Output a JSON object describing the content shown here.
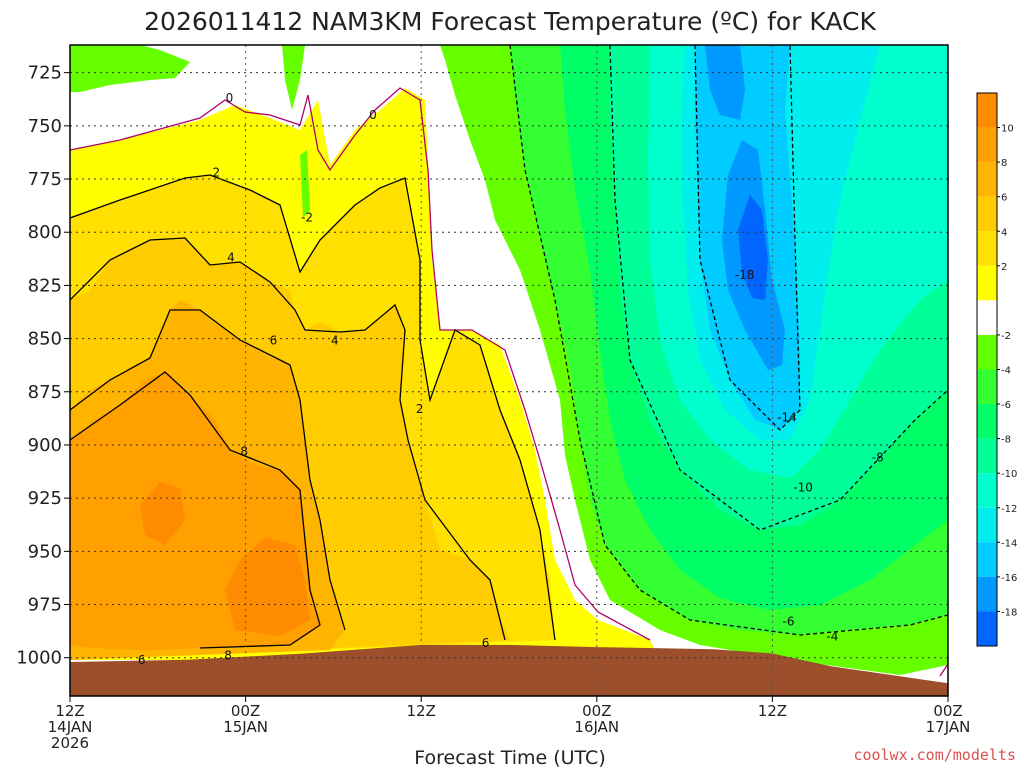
{
  "chart_data": {
    "type": "heatmap",
    "title": "2026011412 NAM3KM Forecast Temperature (ºC) for KACK",
    "xlabel": "Forecast Time (UTC)",
    "ylabel": "",
    "credit": "coolwx.com/modelts",
    "x_ticks": [
      {
        "hours": 0,
        "lines": [
          "12Z",
          "14JAN",
          "2026"
        ]
      },
      {
        "hours": 12,
        "lines": [
          "00Z",
          "15JAN"
        ]
      },
      {
        "hours": 24,
        "lines": [
          "12Z"
        ]
      },
      {
        "hours": 36,
        "lines": [
          "00Z",
          "16JAN"
        ]
      },
      {
        "hours": 48,
        "lines": [
          "12Z"
        ]
      },
      {
        "hours": 60,
        "lines": [
          "00Z",
          "17JAN"
        ]
      }
    ],
    "xlim_hours": [
      0,
      60
    ],
    "y_ticks": [
      725,
      750,
      775,
      800,
      825,
      850,
      875,
      900,
      925,
      950,
      975,
      1000
    ],
    "ylim_hPa": [
      712,
      1018
    ],
    "colorbar": {
      "labels": [
        "10",
        "8",
        "6",
        "4",
        "2",
        "-2",
        "-4",
        "-6",
        "-8",
        "-10",
        "-12",
        "-14",
        "-16",
        "-18"
      ],
      "bands": [
        {
          "from": 10,
          "to": 12,
          "color": "#ff8c00"
        },
        {
          "from": 8,
          "to": 10,
          "color": "#ff9f00"
        },
        {
          "from": 6,
          "to": 8,
          "color": "#ffb400"
        },
        {
          "from": 4,
          "to": 6,
          "color": "#ffcc00"
        },
        {
          "from": 2,
          "to": 4,
          "color": "#ffe000"
        },
        {
          "from": 0,
          "to": 2,
          "color": "#ffff00"
        },
        {
          "from": -2,
          "to": 0,
          "color": "#ffffff"
        },
        {
          "from": -4,
          "to": -2,
          "color": "#66ff00"
        },
        {
          "from": -6,
          "to": -4,
          "color": "#33ff33"
        },
        {
          "from": -8,
          "to": -6,
          "color": "#00ff66"
        },
        {
          "from": -10,
          "to": -8,
          "color": "#00ff99"
        },
        {
          "from": -12,
          "to": -10,
          "color": "#00ffcc"
        },
        {
          "from": -14,
          "to": -12,
          "color": "#00eeee"
        },
        {
          "from": -16,
          "to": -14,
          "color": "#00ccff"
        },
        {
          "from": -18,
          "to": -16,
          "color": "#0099ff"
        },
        {
          "from": -20,
          "to": -18,
          "color": "#0066ff"
        }
      ]
    },
    "contour_labels": [
      {
        "text": "0",
        "hours": 10.9,
        "hPa": 737
      },
      {
        "text": "0",
        "hours": 20.7,
        "hPa": 745
      },
      {
        "text": "2",
        "hours": 10.0,
        "hPa": 772
      },
      {
        "text": "-2",
        "hours": 16.2,
        "hPa": 793
      },
      {
        "text": "4",
        "hours": 11.0,
        "hPa": 812
      },
      {
        "text": "6",
        "hours": 13.9,
        "hPa": 851
      },
      {
        "text": "4",
        "hours": 18.1,
        "hPa": 851
      },
      {
        "text": "8",
        "hours": 11.9,
        "hPa": 903
      },
      {
        "text": "2",
        "hours": 23.9,
        "hPa": 883
      },
      {
        "text": "6",
        "hours": 28.4,
        "hPa": 993
      },
      {
        "text": "8",
        "hours": 10.8,
        "hPa": 999
      },
      {
        "text": "6",
        "hours": 4.9,
        "hPa": 1001
      },
      {
        "text": "-18",
        "hours": 46.1,
        "hPa": 820
      },
      {
        "text": "-14",
        "hours": 49.0,
        "hPa": 887
      },
      {
        "text": "-10",
        "hours": 50.1,
        "hPa": 920
      },
      {
        "text": "-8",
        "hours": 55.2,
        "hPa": 906
      },
      {
        "text": "-6",
        "hours": 49.1,
        "hPa": 983
      },
      {
        "text": "-4",
        "hours": 52.1,
        "hPa": 990
      }
    ],
    "ground_level_hPa": [
      {
        "hours": 0,
        "hPa": 1002
      },
      {
        "hours": 8,
        "hPa": 1001
      },
      {
        "hours": 16,
        "hPa": 998
      },
      {
        "hours": 24,
        "hPa": 994
      },
      {
        "hours": 30,
        "hPa": 994
      },
      {
        "hours": 36,
        "hPa": 995
      },
      {
        "hours": 44,
        "hPa": 996
      },
      {
        "hours": 48,
        "hPa": 998
      },
      {
        "hours": 52,
        "hPa": 1004
      },
      {
        "hours": 56,
        "hPa": 1008
      },
      {
        "hours": 60,
        "hPa": 1012
      }
    ]
  }
}
